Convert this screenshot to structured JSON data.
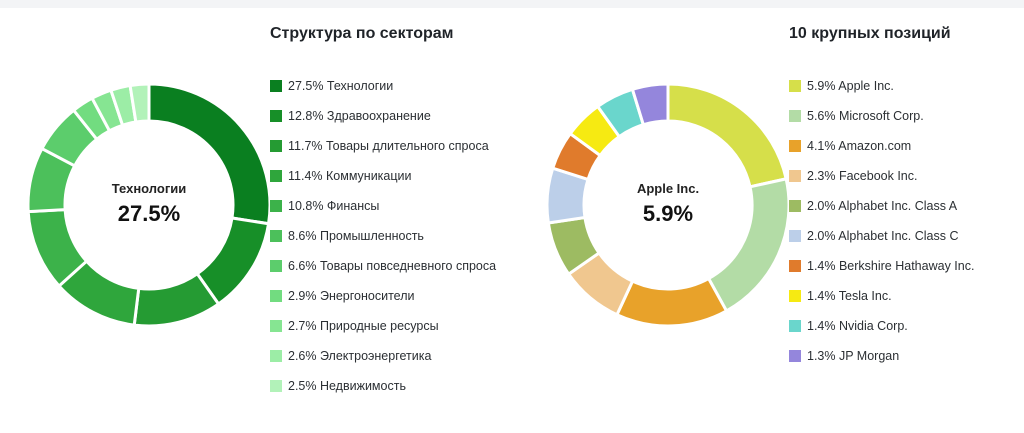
{
  "chart_data": [
    {
      "type": "pie",
      "title": "Структура по секторам",
      "center": {
        "name": "Технологии",
        "value": "27.5%"
      },
      "slices": [
        {
          "label": "Технологии",
          "value": 27.5,
          "value_text": "27.5%",
          "color": "#0a7f20"
        },
        {
          "label": "Здравоохранение",
          "value": 12.8,
          "value_text": "12.8%",
          "color": "#178f28"
        },
        {
          "label": "Товары длительного спроса",
          "value": 11.7,
          "value_text": "11.7%",
          "color": "#259b33"
        },
        {
          "label": "Коммуникации",
          "value": 11.4,
          "value_text": "11.4%",
          "color": "#2fa63c"
        },
        {
          "label": "Финансы",
          "value": 10.8,
          "value_text": "10.8%",
          "color": "#3cb24a"
        },
        {
          "label": "Промышленность",
          "value": 8.6,
          "value_text": "8.6%",
          "color": "#4cc05b"
        },
        {
          "label": "Товары повседневного спроса",
          "value": 6.6,
          "value_text": "6.6%",
          "color": "#5ccd6c"
        },
        {
          "label": "Энергоносители",
          "value": 2.9,
          "value_text": "2.9%",
          "color": "#72dc80"
        },
        {
          "label": "Природные ресурсы",
          "value": 2.7,
          "value_text": "2.7%",
          "color": "#86e592"
        },
        {
          "label": "Электроэнергетика",
          "value": 2.6,
          "value_text": "2.6%",
          "color": "#9cedA6"
        },
        {
          "label": "Недвижимость",
          "value": 2.5,
          "value_text": "2.5%",
          "color": "#b2f2b9"
        }
      ]
    },
    {
      "type": "pie",
      "title": "10 крупных позиций",
      "center": {
        "name": "Apple Inc.",
        "value": "5.9%"
      },
      "slices": [
        {
          "label": "Apple Inc.",
          "value": 5.9,
          "value_text": "5.9%",
          "color": "#d6df4a"
        },
        {
          "label": "Microsoft Corp.",
          "value": 5.6,
          "value_text": "5.6%",
          "color": "#b3dca6"
        },
        {
          "label": "Amazon.com",
          "value": 4.1,
          "value_text": "4.1%",
          "color": "#e8a22a"
        },
        {
          "label": "Facebook Inc.",
          "value": 2.3,
          "value_text": "2.3%",
          "color": "#f0c78f"
        },
        {
          "label": "Alphabet Inc. Class A",
          "value": 2.0,
          "value_text": "2.0%",
          "color": "#9dbb62"
        },
        {
          "label": "Alphabet Inc. Class C",
          "value": 2.0,
          "value_text": "2.0%",
          "color": "#bccfe9"
        },
        {
          "label": "Berkshire Hathaway Inc.",
          "value": 1.4,
          "value_text": "1.4%",
          "color": "#e07b2c"
        },
        {
          "label": "Tesla Inc.",
          "value": 1.4,
          "value_text": "1.4%",
          "color": "#f6ea12"
        },
        {
          "label": "Nvidia Corp.",
          "value": 1.4,
          "value_text": "1.4%",
          "color": "#6ad6cc"
        },
        {
          "label": "JP Morgan",
          "value": 1.3,
          "value_text": "1.3%",
          "color": "#9486dc"
        }
      ]
    }
  ]
}
